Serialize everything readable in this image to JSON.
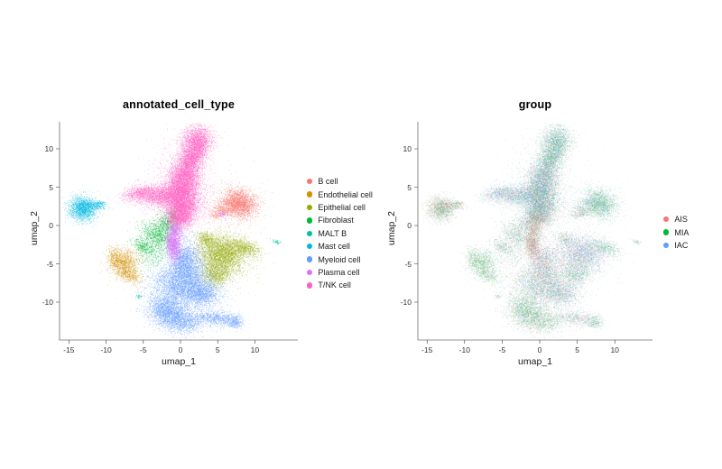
{
  "figure": {
    "background": "#ffffff",
    "text_color": "#1a1a1a",
    "axis_color": "#2a2a2a"
  },
  "panels": [
    {
      "title": "annotated_cell_type",
      "xlabel": "umap_1",
      "ylabel": "umap_2",
      "color_by": "cell_type",
      "legend": [
        {
          "label": "B cell",
          "color": "#F8766D"
        },
        {
          "label": "Endothelial cell",
          "color": "#D39200"
        },
        {
          "label": "Epithelial cell",
          "color": "#93AA00"
        },
        {
          "label": "Fibroblast",
          "color": "#00BA38"
        },
        {
          "label": "MALT B",
          "color": "#00C19F"
        },
        {
          "label": "Mast cell",
          "color": "#00B9E3"
        },
        {
          "label": "Myeloid cell",
          "color": "#619CFF"
        },
        {
          "label": "Plasma cell",
          "color": "#DB72FB"
        },
        {
          "label": "T/NK cell",
          "color": "#FF61C3"
        }
      ]
    },
    {
      "title": "group",
      "xlabel": "umap_1",
      "ylabel": "umap_2",
      "color_by": "group",
      "legend": [
        {
          "label": "AIS",
          "color": "#F8766D"
        },
        {
          "label": "MIA",
          "color": "#00BA38"
        },
        {
          "label": "IAC",
          "color": "#619CFF"
        }
      ]
    }
  ],
  "chart_data": {
    "type": "scatter",
    "embedding": "UMAP",
    "xlabel": "umap_1",
    "ylabel": "umap_2",
    "x_ticks": [
      -15,
      -10,
      -5,
      0,
      5,
      10
    ],
    "y_ticks": [
      10,
      5,
      0,
      -5,
      -10
    ],
    "xlim": [
      -16.2,
      15.8
    ],
    "ylim": [
      -14.9,
      14.0
    ],
    "grid": false,
    "legend_position": "right",
    "groups_order": [
      "AIS",
      "MIA",
      "IAC"
    ],
    "group_colors": {
      "AIS": "#F8766D",
      "MIA": "#00BA38",
      "IAC": "#619CFF"
    },
    "clusters": [
      {
        "cell_type": "Fibroblast",
        "color": "#00BA38",
        "group_mix": [
          0.3,
          0.36,
          0.34
        ],
        "blobs": [
          {
            "x": -3.3,
            "y": -1.3,
            "sx": 1.15,
            "sy": 0.75,
            "rot": -30,
            "n": 900
          },
          {
            "x": -1.9,
            "y": 0.2,
            "sx": 0.8,
            "sy": 0.8,
            "rot": -40,
            "n": 650
          },
          {
            "x": -5.0,
            "y": -2.7,
            "sx": 0.9,
            "sy": 0.5,
            "rot": -20,
            "n": 420
          },
          {
            "x": -3.6,
            "y": -3.9,
            "sx": 1.1,
            "sy": 1.0,
            "rot": 0,
            "n": 300
          },
          {
            "x": -0.9,
            "y": 1.5,
            "sx": 0.45,
            "sy": 0.55,
            "rot": 0,
            "n": 160
          }
        ]
      },
      {
        "cell_type": "Endothelial cell",
        "color": "#D39200",
        "group_mix": [
          0.22,
          0.58,
          0.2
        ],
        "blobs": [
          {
            "x": -7.6,
            "y": -4.8,
            "sx": 1.05,
            "sy": 0.85,
            "rot": 20,
            "n": 1100
          },
          {
            "x": -6.9,
            "y": -6.4,
            "sx": 0.85,
            "sy": 0.55,
            "rot": -25,
            "n": 500
          },
          {
            "x": -8.9,
            "y": -4.1,
            "sx": 0.5,
            "sy": 0.7,
            "rot": 0,
            "n": 300
          }
        ]
      },
      {
        "cell_type": "Epithelial cell",
        "color": "#93AA00",
        "group_mix": [
          0.28,
          0.22,
          0.5
        ],
        "blobs": [
          {
            "x": 5.6,
            "y": -3.6,
            "sx": 1.7,
            "sy": 1.2,
            "rot": -8,
            "n": 3200,
            "mix": [
              0.28,
              0.15,
              0.57
            ]
          },
          {
            "x": 4.8,
            "y": -6.3,
            "sx": 1.0,
            "sy": 0.85,
            "rot": 0,
            "n": 1100,
            "mix": [
              0.25,
              0.4,
              0.35
            ]
          },
          {
            "x": 8.6,
            "y": -2.9,
            "sx": 1.1,
            "sy": 0.5,
            "rot": -15,
            "n": 650,
            "mix": [
              0.15,
              0.55,
              0.3
            ]
          },
          {
            "x": 3.4,
            "y": -1.7,
            "sx": 0.8,
            "sy": 0.5,
            "rot": -20,
            "n": 400,
            "mix": [
              0.3,
              0.3,
              0.4
            ]
          },
          {
            "x": 5.5,
            "y": -4.2,
            "sx": 2.5,
            "sy": 1.9,
            "rot": 0,
            "n": 450,
            "mix": [
              0.28,
              0.3,
              0.42
            ]
          }
        ]
      },
      {
        "cell_type": "Myeloid cell",
        "color": "#619CFF",
        "group_mix": [
          0.3,
          0.32,
          0.38
        ],
        "blobs": [
          {
            "x": 0.6,
            "y": -4.6,
            "sx": 1.1,
            "sy": 1.4,
            "rot": 10,
            "n": 2200,
            "mix": [
              0.4,
              0.2,
              0.4
            ]
          },
          {
            "x": 0.0,
            "y": -7.6,
            "sx": 1.9,
            "sy": 1.3,
            "rot": 0,
            "n": 3200,
            "mix": [
              0.28,
              0.3,
              0.42
            ]
          },
          {
            "x": -2.0,
            "y": -11.0,
            "sx": 1.25,
            "sy": 1.0,
            "rot": 0,
            "n": 2000,
            "mix": [
              0.24,
              0.48,
              0.28
            ]
          },
          {
            "x": 3.0,
            "y": -8.8,
            "sx": 1.2,
            "sy": 0.9,
            "rot": 0,
            "n": 1400,
            "mix": [
              0.3,
              0.25,
              0.45
            ]
          },
          {
            "x": 0.3,
            "y": -12.4,
            "sx": 1.4,
            "sy": 0.85,
            "rot": 0,
            "n": 1500,
            "mix": [
              0.24,
              0.48,
              0.28
            ]
          },
          {
            "x": 4.8,
            "y": -12.1,
            "sx": 1.5,
            "sy": 0.5,
            "rot": -5,
            "n": 850,
            "mix": [
              0.36,
              0.26,
              0.38
            ]
          },
          {
            "x": 7.2,
            "y": -12.5,
            "sx": 0.55,
            "sy": 0.45,
            "rot": 0,
            "n": 330,
            "mix": [
              0.2,
              0.45,
              0.35
            ]
          },
          {
            "x": 0.5,
            "y": -8.2,
            "sx": 3.0,
            "sy": 2.6,
            "rot": 0,
            "n": 800,
            "mix": [
              0.3,
              0.3,
              0.4
            ]
          }
        ]
      },
      {
        "cell_type": "MALT B",
        "color": "#00C19F",
        "group_mix": [
          0.3,
          0.4,
          0.3
        ],
        "blobs": [
          {
            "x": 12.9,
            "y": -2.1,
            "sx": 0.32,
            "sy": 0.13,
            "rot": -15,
            "n": 70
          },
          {
            "x": -5.6,
            "y": -9.2,
            "sx": 0.26,
            "sy": 0.15,
            "rot": 0,
            "n": 45
          }
        ]
      },
      {
        "cell_type": "B cell",
        "color": "#F8766D",
        "group_mix": [
          0.15,
          0.48,
          0.37
        ],
        "blobs": [
          {
            "x": 7.8,
            "y": 2.9,
            "sx": 1.25,
            "sy": 0.95,
            "rot": -10,
            "n": 2600
          },
          {
            "x": 5.4,
            "y": 1.9,
            "sx": 0.95,
            "sy": 0.5,
            "rot": 25,
            "n": 450,
            "mix": [
              0.3,
              0.35,
              0.35
            ]
          },
          {
            "x": 7.2,
            "y": 2.7,
            "sx": 2.0,
            "sy": 1.5,
            "rot": 0,
            "n": 260
          }
        ]
      },
      {
        "cell_type": "Mast cell",
        "color": "#00B9E3",
        "group_mix": [
          0.44,
          0.36,
          0.2
        ],
        "blobs": [
          {
            "x": -13.2,
            "y": 2.2,
            "sx": 0.9,
            "sy": 0.78,
            "rot": 0,
            "n": 1900
          },
          {
            "x": -11.5,
            "y": 2.7,
            "sx": 0.8,
            "sy": 0.26,
            "rot": -8,
            "n": 320
          },
          {
            "x": -10.7,
            "y": 2.95,
            "sx": 0.3,
            "sy": 0.14,
            "rot": 0,
            "n": 70
          }
        ]
      },
      {
        "cell_type": "T/NK cell",
        "color": "#FF61C3",
        "group_mix": [
          0.26,
          0.3,
          0.44
        ],
        "blobs": [
          {
            "x": 2.2,
            "y": 10.8,
            "sx": 1.0,
            "sy": 1.15,
            "rot": -20,
            "n": 2600,
            "mix": [
              0.18,
              0.42,
              0.4
            ]
          },
          {
            "x": 1.4,
            "y": 8.8,
            "sx": 0.75,
            "sy": 0.95,
            "rot": -15,
            "n": 1300,
            "mix": [
              0.18,
              0.45,
              0.37
            ]
          },
          {
            "x": 0.6,
            "y": 6.6,
            "sx": 1.05,
            "sy": 1.2,
            "rot": -12,
            "n": 2600
          },
          {
            "x": 0.0,
            "y": 4.4,
            "sx": 1.25,
            "sy": 1.2,
            "rot": 0,
            "n": 3000
          },
          {
            "x": 0.2,
            "y": 2.4,
            "sx": 1.2,
            "sy": 1.1,
            "rot": 0,
            "n": 2800
          },
          {
            "x": -0.2,
            "y": 0.9,
            "sx": 0.8,
            "sy": 0.7,
            "rot": 0,
            "n": 1200,
            "mix": [
              0.45,
              0.25,
              0.3
            ]
          },
          {
            "x": -2.6,
            "y": 3.8,
            "sx": 1.3,
            "sy": 0.68,
            "rot": 8,
            "n": 1500,
            "mix": [
              0.22,
              0.25,
              0.53
            ]
          },
          {
            "x": -5.3,
            "y": 4.25,
            "sx": 1.2,
            "sy": 0.55,
            "rot": 10,
            "n": 1100,
            "mix": [
              0.22,
              0.25,
              0.53
            ]
          },
          {
            "x": 0.3,
            "y": 5.2,
            "sx": 2.6,
            "sy": 3.2,
            "rot": 0,
            "n": 800
          }
        ]
      },
      {
        "cell_type": "Plasma cell",
        "color": "#DB72FB",
        "group_mix": [
          0.6,
          0.22,
          0.18
        ],
        "blobs": [
          {
            "x": -1.0,
            "y": -2.5,
            "sx": 0.5,
            "sy": 1.1,
            "rot": 8,
            "n": 1500
          },
          {
            "x": -0.6,
            "y": -0.7,
            "sx": 0.5,
            "sy": 0.55,
            "rot": 0,
            "n": 400
          },
          {
            "x": 5.6,
            "y": 1.5,
            "sx": 0.28,
            "sy": 0.2,
            "rot": 0,
            "n": 60
          }
        ]
      }
    ]
  }
}
